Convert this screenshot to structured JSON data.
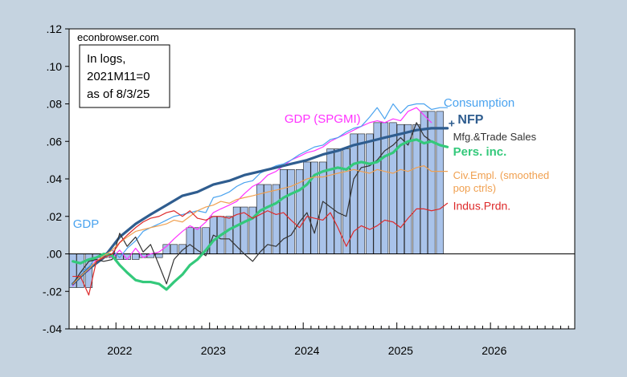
{
  "chart_data": {
    "type": "line",
    "title": "",
    "xlabel": "",
    "ylabel": "",
    "source": "econbrowser.com",
    "note_lines": [
      "In logs,",
      "2021M11=0",
      "as of 8/3/25"
    ],
    "xlim": [
      2021.5,
      2026.9
    ],
    "ylim": [
      -0.04,
      0.12
    ],
    "y_ticks": [
      {
        "v": -0.04,
        "label": "-.04"
      },
      {
        "v": -0.02,
        "label": "-.02"
      },
      {
        "v": 0.0,
        "label": ".00"
      },
      {
        "v": 0.02,
        "label": ".02"
      },
      {
        "v": 0.04,
        "label": ".04"
      },
      {
        "v": 0.06,
        "label": ".06"
      },
      {
        "v": 0.08,
        "label": ".08"
      },
      {
        "v": 0.1,
        "label": ".10"
      },
      {
        "v": 0.12,
        "label": ".12"
      }
    ],
    "x_ticks": [
      {
        "v": 2022,
        "label": "2022"
      },
      {
        "v": 2023,
        "label": "2023"
      },
      {
        "v": 2024,
        "label": "2024"
      },
      {
        "v": 2025,
        "label": "2025"
      },
      {
        "v": 2026,
        "label": "2026"
      }
    ],
    "zero_line": true,
    "grid": false,
    "colors": {
      "background": "#c5d3e0",
      "bars_fill": "#a9c3ea",
      "bars_stroke": "#1f1f1f",
      "gdp_spgmi": "#ff33ff",
      "consumption": "#4aa3ef",
      "nfp": "#2f5d8f",
      "mfg_trade_sales": "#333333",
      "pers_inc": "#34c97b",
      "civ_empl": "#f0a050",
      "indus_prdn": "#dd2a2a"
    },
    "bars": {
      "name": "GDP",
      "x": [
        2021.54,
        2021.62,
        2021.71,
        2021.79,
        2021.87,
        2021.96,
        2022.04,
        2022.12,
        2022.21,
        2022.29,
        2022.37,
        2022.46,
        2022.54,
        2022.62,
        2022.71,
        2022.79,
        2022.87,
        2022.96,
        2023.04,
        2023.12,
        2023.21,
        2023.29,
        2023.37,
        2023.46,
        2023.54,
        2023.62,
        2023.71,
        2023.79,
        2023.87,
        2023.96,
        2024.04,
        2024.12,
        2024.21,
        2024.29,
        2024.37,
        2024.46,
        2024.54,
        2024.62,
        2024.71,
        2024.79,
        2024.87,
        2024.96,
        2025.04,
        2025.12,
        2025.21,
        2025.29,
        2025.37,
        2025.46
      ],
      "values": [
        -0.018,
        -0.018,
        -0.018,
        -0.002,
        -0.002,
        -0.002,
        -0.003,
        -0.003,
        -0.003,
        -0.002,
        -0.002,
        -0.002,
        0.005,
        0.005,
        0.005,
        0.014,
        0.014,
        0.014,
        0.02,
        0.02,
        0.02,
        0.025,
        0.025,
        0.025,
        0.037,
        0.037,
        0.037,
        0.045,
        0.045,
        0.045,
        0.049,
        0.049,
        0.049,
        0.056,
        0.056,
        0.056,
        0.064,
        0.064,
        0.064,
        0.07,
        0.07,
        0.07,
        0.069,
        0.069,
        0.069,
        0.076,
        0.076,
        0.076
      ]
    },
    "series": [
      {
        "name": "GDP (SPGMI)",
        "label_lines": [
          "GDP (SPGMI)"
        ],
        "color_key": "gdp_spgmi",
        "width": 1.2,
        "x": [
          2021.54,
          2021.62,
          2021.71,
          2021.79,
          2021.87,
          2021.96,
          2022.04,
          2022.12,
          2022.21,
          2022.29,
          2022.37,
          2022.46,
          2022.54,
          2022.62,
          2022.71,
          2022.79,
          2022.87,
          2022.96,
          2023.04,
          2023.12,
          2023.21,
          2023.29,
          2023.37,
          2023.46,
          2023.54,
          2023.62,
          2023.71,
          2023.79,
          2023.87,
          2023.96,
          2024.04,
          2024.12,
          2024.21,
          2024.29,
          2024.37,
          2024.46,
          2024.54,
          2024.62,
          2024.71,
          2024.79,
          2024.87,
          2024.96,
          2025.04,
          2025.12,
          2025.21,
          2025.29,
          2025.37
        ],
        "values": [
          -0.017,
          -0.012,
          -0.009,
          -0.003,
          0.0,
          -0.002,
          0.002,
          -0.003,
          0.003,
          -0.002,
          0.0,
          0.001,
          0.004,
          0.008,
          0.012,
          0.015,
          0.013,
          0.017,
          0.022,
          0.024,
          0.026,
          0.028,
          0.032,
          0.036,
          0.038,
          0.042,
          0.044,
          0.047,
          0.05,
          0.052,
          0.054,
          0.055,
          0.057,
          0.06,
          0.062,
          0.064,
          0.066,
          0.068,
          0.07,
          0.071,
          0.07,
          0.072,
          0.071,
          0.076,
          0.078,
          0.074,
          0.07
        ]
      },
      {
        "name": "Consumption",
        "label_lines": [
          "Consumption"
        ],
        "color_key": "consumption",
        "width": 1.2,
        "x": [
          2021.54,
          2021.62,
          2021.71,
          2021.79,
          2021.87,
          2021.96,
          2022.04,
          2022.12,
          2022.21,
          2022.29,
          2022.37,
          2022.46,
          2022.54,
          2022.62,
          2022.71,
          2022.79,
          2022.87,
          2022.96,
          2023.04,
          2023.12,
          2023.21,
          2023.29,
          2023.37,
          2023.46,
          2023.54,
          2023.62,
          2023.71,
          2023.79,
          2023.87,
          2023.96,
          2024.04,
          2024.12,
          2024.21,
          2024.29,
          2024.37,
          2024.46,
          2024.54,
          2024.62,
          2024.71,
          2024.79,
          2024.87,
          2024.96,
          2025.04,
          2025.12,
          2025.21,
          2025.29,
          2025.37,
          2025.46,
          2025.54
        ],
        "values": [
          -0.016,
          -0.01,
          -0.007,
          -0.002,
          0.0,
          0.002,
          -0.002,
          0.003,
          0.007,
          0.012,
          0.014,
          0.016,
          0.018,
          0.02,
          0.021,
          0.022,
          0.023,
          0.022,
          0.03,
          0.031,
          0.033,
          0.036,
          0.038,
          0.039,
          0.043,
          0.045,
          0.047,
          0.048,
          0.05,
          0.053,
          0.055,
          0.057,
          0.058,
          0.061,
          0.062,
          0.065,
          0.067,
          0.068,
          0.073,
          0.078,
          0.072,
          0.08,
          0.075,
          0.079,
          0.08,
          0.08,
          0.077,
          0.078,
          0.078
        ]
      },
      {
        "name": "NFP",
        "label_lines": [
          "NFP"
        ],
        "color_key": "nfp",
        "width": 3.2,
        "x": [
          2021.54,
          2021.71,
          2021.87,
          2022.04,
          2022.21,
          2022.37,
          2022.54,
          2022.71,
          2022.87,
          2023.04,
          2023.21,
          2023.37,
          2023.54,
          2023.71,
          2023.87,
          2024.04,
          2024.21,
          2024.37,
          2024.54,
          2024.71,
          2024.87,
          2025.04,
          2025.21,
          2025.37,
          2025.54
        ],
        "values": [
          -0.016,
          -0.008,
          -0.002,
          0.009,
          0.016,
          0.021,
          0.026,
          0.031,
          0.033,
          0.037,
          0.039,
          0.042,
          0.044,
          0.046,
          0.048,
          0.05,
          0.053,
          0.055,
          0.058,
          0.06,
          0.062,
          0.064,
          0.066,
          0.067,
          0.067
        ]
      },
      {
        "name": "Mfg.&Trade Sales",
        "label_lines": [
          "Mfg.&Trade Sales"
        ],
        "color_key": "mfg_trade_sales",
        "width": 1.2,
        "x": [
          2021.54,
          2021.62,
          2021.71,
          2021.79,
          2021.87,
          2021.96,
          2022.04,
          2022.12,
          2022.21,
          2022.29,
          2022.37,
          2022.46,
          2022.54,
          2022.62,
          2022.71,
          2022.79,
          2022.87,
          2022.96,
          2023.04,
          2023.12,
          2023.21,
          2023.29,
          2023.37,
          2023.46,
          2023.54,
          2023.62,
          2023.71,
          2023.79,
          2023.87,
          2023.96,
          2024.04,
          2024.12,
          2024.21,
          2024.29,
          2024.37,
          2024.46,
          2024.54,
          2024.62,
          2024.71,
          2024.79,
          2024.87,
          2024.96,
          2025.04,
          2025.12,
          2025.21,
          2025.29,
          2025.37
        ],
        "values": [
          -0.016,
          -0.01,
          -0.004,
          -0.003,
          -0.004,
          -0.003,
          0.011,
          0.004,
          0.009,
          0.001,
          0.005,
          -0.006,
          -0.016,
          -0.003,
          0.002,
          0.005,
          0.002,
          -0.001,
          0.01,
          0.008,
          0.008,
          0.004,
          0.0,
          -0.004,
          0.001,
          0.005,
          0.004,
          0.008,
          0.01,
          0.017,
          0.022,
          0.011,
          0.028,
          0.025,
          0.022,
          0.02,
          0.04,
          0.046,
          0.047,
          0.05,
          0.055,
          0.058,
          0.062,
          0.058,
          0.07,
          0.063,
          0.06
        ]
      },
      {
        "name": "Pers. inc.",
        "label_lines": [
          "Pers. inc."
        ],
        "color_key": "pers_inc",
        "width": 3.2,
        "x": [
          2021.54,
          2021.62,
          2021.71,
          2021.79,
          2021.87,
          2021.96,
          2022.04,
          2022.12,
          2022.21,
          2022.29,
          2022.37,
          2022.46,
          2022.54,
          2022.62,
          2022.71,
          2022.79,
          2022.87,
          2022.96,
          2023.04,
          2023.12,
          2023.21,
          2023.29,
          2023.37,
          2023.46,
          2023.54,
          2023.62,
          2023.71,
          2023.79,
          2023.87,
          2023.96,
          2024.04,
          2024.12,
          2024.21,
          2024.29,
          2024.37,
          2024.46,
          2024.54,
          2024.62,
          2024.71,
          2024.79,
          2024.87,
          2024.96,
          2025.04,
          2025.12,
          2025.21,
          2025.29,
          2025.37,
          2025.46,
          2025.54
        ],
        "values": [
          -0.004,
          -0.005,
          -0.003,
          -0.002,
          0.0,
          -0.001,
          -0.006,
          -0.01,
          -0.014,
          -0.015,
          -0.015,
          -0.016,
          -0.019,
          -0.015,
          -0.011,
          -0.006,
          -0.003,
          0.002,
          0.007,
          0.01,
          0.013,
          0.015,
          0.017,
          0.019,
          0.023,
          0.025,
          0.027,
          0.03,
          0.032,
          0.034,
          0.037,
          0.042,
          0.044,
          0.045,
          0.046,
          0.045,
          0.048,
          0.049,
          0.048,
          0.049,
          0.052,
          0.054,
          0.058,
          0.06,
          0.061,
          0.059,
          0.06,
          0.058,
          0.057
        ]
      },
      {
        "name": "Civ.Empl. (smoothed pop ctrls)",
        "label_lines": [
          "Civ.Empl. (smoothed",
          "pop ctrls)"
        ],
        "color_key": "civ_empl",
        "width": 1.2,
        "x": [
          2021.54,
          2021.62,
          2021.71,
          2021.79,
          2021.87,
          2021.96,
          2022.04,
          2022.12,
          2022.21,
          2022.29,
          2022.37,
          2022.46,
          2022.54,
          2022.62,
          2022.71,
          2022.79,
          2022.87,
          2022.96,
          2023.04,
          2023.12,
          2023.21,
          2023.29,
          2023.37,
          2023.46,
          2023.54,
          2023.62,
          2023.71,
          2023.79,
          2023.87,
          2023.96,
          2024.04,
          2024.12,
          2024.21,
          2024.29,
          2024.37,
          2024.46,
          2024.54,
          2024.62,
          2024.71,
          2024.79,
          2024.87,
          2024.96,
          2025.04,
          2025.12,
          2025.21,
          2025.29,
          2025.37,
          2025.46,
          2025.54
        ],
        "values": [
          -0.016,
          -0.012,
          -0.008,
          -0.004,
          -0.001,
          0.002,
          0.006,
          0.009,
          0.012,
          0.013,
          0.014,
          0.015,
          0.016,
          0.018,
          0.017,
          0.02,
          0.023,
          0.025,
          0.026,
          0.028,
          0.027,
          0.029,
          0.03,
          0.031,
          0.032,
          0.033,
          0.034,
          0.035,
          0.036,
          0.038,
          0.04,
          0.041,
          0.041,
          0.042,
          0.043,
          0.044,
          0.045,
          0.044,
          0.043,
          0.045,
          0.044,
          0.043,
          0.045,
          0.044,
          0.046,
          0.047,
          0.044,
          0.044,
          0.044
        ]
      },
      {
        "name": "Indus.Prdn.",
        "label_lines": [
          "Indus.Prdn."
        ],
        "color_key": "indus_prdn",
        "width": 1.2,
        "x": [
          2021.54,
          2021.62,
          2021.71,
          2021.79,
          2021.87,
          2021.96,
          2022.04,
          2022.12,
          2022.21,
          2022.29,
          2022.37,
          2022.46,
          2022.54,
          2022.62,
          2022.71,
          2022.79,
          2022.87,
          2022.96,
          2023.04,
          2023.12,
          2023.21,
          2023.29,
          2023.37,
          2023.46,
          2023.54,
          2023.62,
          2023.71,
          2023.79,
          2023.87,
          2023.96,
          2024.04,
          2024.12,
          2024.21,
          2024.29,
          2024.37,
          2024.46,
          2024.54,
          2024.62,
          2024.71,
          2024.79,
          2024.87,
          2024.96,
          2025.04,
          2025.12,
          2025.21,
          2025.29,
          2025.37,
          2025.46,
          2025.54
        ],
        "values": [
          -0.012,
          -0.012,
          -0.022,
          -0.004,
          -0.002,
          0.0,
          0.006,
          0.01,
          0.014,
          0.017,
          0.019,
          0.02,
          0.022,
          0.023,
          0.02,
          0.023,
          0.019,
          0.018,
          0.02,
          0.02,
          0.019,
          0.021,
          0.022,
          0.019,
          0.021,
          0.023,
          0.021,
          0.022,
          0.018,
          0.014,
          0.02,
          0.019,
          0.018,
          0.022,
          0.014,
          0.004,
          0.012,
          0.015,
          0.013,
          0.015,
          0.018,
          0.017,
          0.014,
          0.019,
          0.024,
          0.024,
          0.023,
          0.024,
          0.027
        ]
      }
    ],
    "labels": [
      {
        "series": "GDP",
        "lines": [
          "GDP"
        ],
        "color_key": "consumption",
        "bold": false,
        "size": 15,
        "lx": 2021.54,
        "ly": 0.014
      },
      {
        "series": "GDP (SPGMI)",
        "lines": [
          "GDP (SPGMI)"
        ],
        "color_key": "gdp_spgmi",
        "bold": false,
        "size": 15,
        "lx": 2023.8,
        "ly": 0.07
      },
      {
        "series": "Consumption",
        "lines": [
          "Consumption"
        ],
        "color_key": "consumption",
        "bold": false,
        "size": 15,
        "lx": 2025.5,
        "ly": 0.0785
      },
      {
        "series": "NFP",
        "lines": [
          "NFP"
        ],
        "color_key": "nfp",
        "bold": true,
        "size": 16,
        "lx": 2025.65,
        "ly": 0.0695
      },
      {
        "series": "Mfg.&Trade Sales",
        "lines": [
          "Mfg.&Trade Sales"
        ],
        "color_key": "mfg_trade_sales",
        "bold": false,
        "size": 13,
        "lx": 2025.6,
        "ly": 0.0605
      },
      {
        "series": "Pers. inc.",
        "lines": [
          "Pers. inc."
        ],
        "color_key": "pers_inc",
        "bold": true,
        "size": 15,
        "lx": 2025.6,
        "ly": 0.0525
      },
      {
        "series": "Civ.Empl. (smoothed pop ctrls)",
        "lines": [
          "Civ.Empl. (smoothed",
          "pop ctrls)"
        ],
        "color_key": "civ_empl",
        "bold": false,
        "size": 13,
        "lx": 2025.6,
        "ly": 0.04
      },
      {
        "series": "Indus.Prdn.",
        "lines": [
          "Indus.Prdn."
        ],
        "color_key": "indus_prdn",
        "bold": false,
        "size": 14,
        "lx": 2025.6,
        "ly": 0.0235
      }
    ]
  }
}
